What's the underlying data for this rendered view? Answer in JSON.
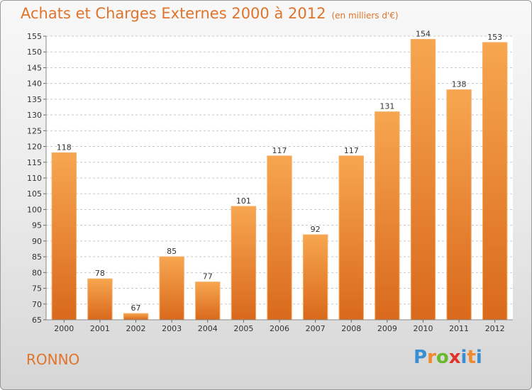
{
  "chart_data": {
    "type": "bar",
    "title": "Achats et Charges Externes 2000 à 2012",
    "subtitle": "(en milliers d'€)",
    "categories": [
      "2000",
      "2001",
      "2002",
      "2003",
      "2004",
      "2005",
      "2006",
      "2007",
      "2008",
      "2009",
      "2010",
      "2011",
      "2012"
    ],
    "values": [
      118,
      78,
      67,
      85,
      77,
      101,
      117,
      92,
      117,
      131,
      154,
      138,
      153
    ],
    "ylim": [
      65,
      155
    ],
    "yticks": [
      65,
      70,
      75,
      80,
      85,
      90,
      95,
      100,
      105,
      110,
      115,
      120,
      125,
      130,
      135,
      140,
      145,
      150,
      155
    ],
    "grid": "horizontal-dashed",
    "bar_color": "#f08a2e"
  },
  "footer": {
    "place_name": "RONNO",
    "logo_text": "Proxiti",
    "logo_colors": [
      "#3a8fd4",
      "#f08a2e",
      "#6ab82e",
      "#e0342a",
      "#3a8fd4",
      "#f08a2e",
      "#3a8fd4"
    ]
  }
}
